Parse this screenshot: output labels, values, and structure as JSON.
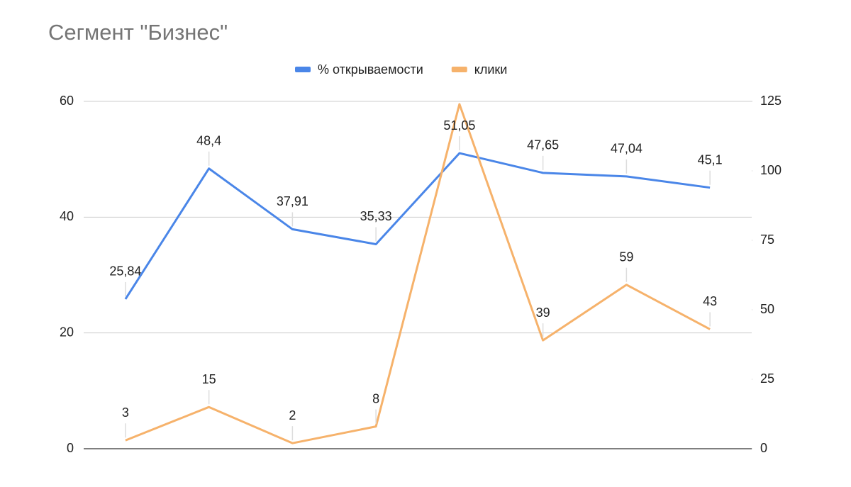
{
  "chart_data": {
    "type": "line",
    "title": "Сегмент \"Бизнес\"",
    "categories": [
      null,
      null,
      null,
      null,
      null,
      null,
      null,
      null
    ],
    "series": [
      {
        "name": "% открываемости",
        "color": "#4a86e8",
        "values": [
          25.84,
          48.4,
          37.91,
          35.33,
          51.05,
          47.65,
          47.04,
          45.1
        ],
        "value_labels": [
          "25,84",
          "48,4",
          "37,91",
          "35,33",
          "51,05",
          "47,65",
          "47,04",
          "45,1"
        ]
      },
      {
        "name": "клики",
        "color": "#f6b26b",
        "axis": "y2",
        "values": [
          3,
          15,
          2,
          8,
          124,
          39,
          59,
          43
        ],
        "value_labels": [
          "3",
          "15",
          "2",
          "8",
          null,
          "39",
          "59",
          "43"
        ]
      }
    ],
    "ylim": [
      0,
      60
    ],
    "yticks": [
      0,
      20,
      40,
      60
    ],
    "y2lim": [
      0,
      125
    ],
    "y2ticks": [
      0,
      25,
      50,
      75,
      100,
      125
    ],
    "grid": true,
    "legend": "top"
  }
}
